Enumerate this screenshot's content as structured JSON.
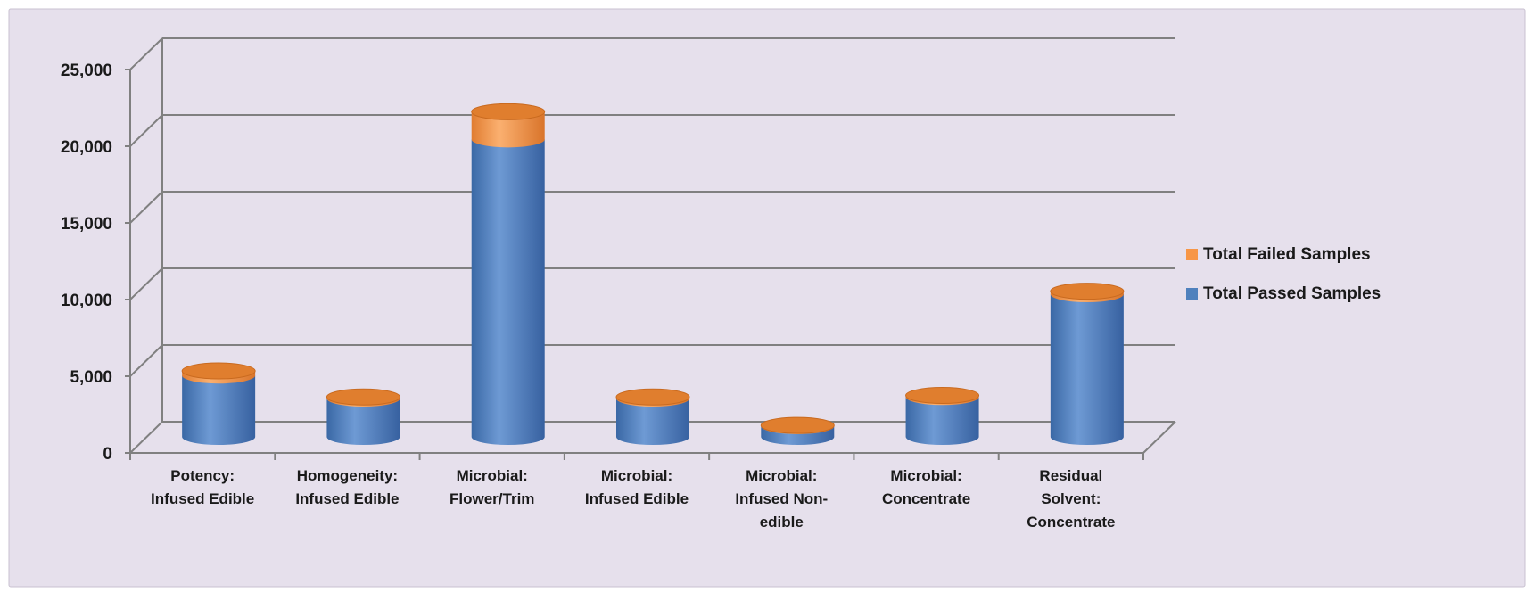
{
  "chart_data": {
    "type": "bar",
    "stacked": true,
    "style": "3d-cylinder",
    "categories": [
      [
        "Potency:",
        "Infused Edible"
      ],
      [
        "Homogeneity:",
        "Infused Edible"
      ],
      [
        "Microbial:",
        "Flower/Trim"
      ],
      [
        "Microbial:",
        "Infused Edible"
      ],
      [
        "Microbial:",
        "Infused Non-",
        "edible"
      ],
      [
        "Microbial:",
        "Concentrate"
      ],
      [
        "Residual",
        "Solvent:",
        "Concentrate"
      ]
    ],
    "series": [
      {
        "name": "Total Passed Samples",
        "color": "#4f81bd",
        "values": [
          4000,
          2500,
          19400,
          2500,
          700,
          2600,
          9300
        ]
      },
      {
        "name": "Total Failed Samples",
        "color": "#f79646",
        "values": [
          300,
          100,
          1800,
          100,
          50,
          100,
          200
        ]
      }
    ],
    "y_ticks": [
      "0",
      "5,000",
      "10,000",
      "15,000",
      "20,000",
      "25,000"
    ],
    "ylim": [
      0,
      25000
    ],
    "grid": true,
    "legend": "right"
  },
  "colors": {
    "background": "#e6e0ec",
    "grid": "#808080",
    "passed_top": "#e07e2e"
  }
}
